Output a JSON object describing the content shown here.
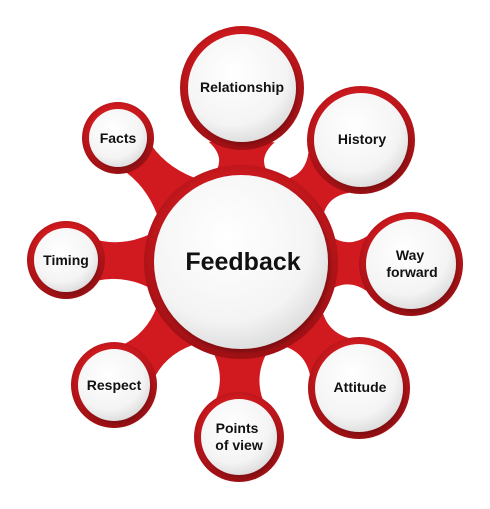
{
  "center": {
    "label": "Feedback"
  },
  "nodes": [
    {
      "label": "Relationship"
    },
    {
      "label": "History"
    },
    {
      "label": "Way forward"
    },
    {
      "label": "Attitude"
    },
    {
      "label": "Points of view"
    },
    {
      "label": "Respect"
    },
    {
      "label": "Timing"
    },
    {
      "label": "Facts"
    }
  ],
  "colors": {
    "ring": "#d11a1f",
    "ring_dark": "#8e0c10",
    "ring_light": "#f03a3d",
    "disc": "#f7f7f7",
    "text": "#111111"
  }
}
